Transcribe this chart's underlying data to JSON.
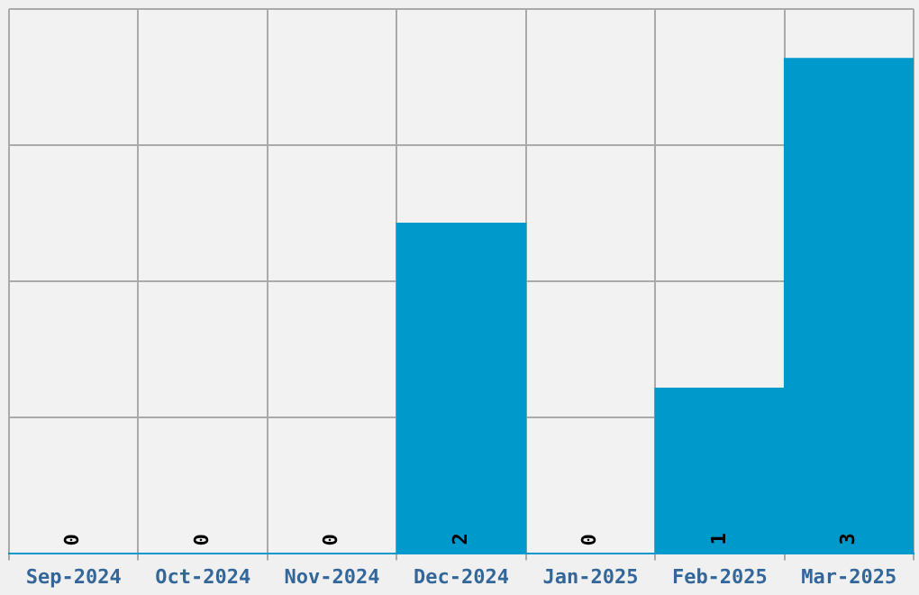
{
  "chart_data": {
    "type": "bar",
    "categories": [
      "Sep-2024",
      "Oct-2024",
      "Nov-2024",
      "Dec-2024",
      "Jan-2025",
      "Feb-2025",
      "Mar-2025"
    ],
    "values": [
      0,
      0,
      0,
      2,
      0,
      1,
      3
    ],
    "color": "#0099cc",
    "data_labels": true,
    "ylim": [
      0,
      3.3
    ],
    "yticks": [
      {
        "value": 0,
        "label": null
      },
      {
        "value": 0.825,
        "label": null
      },
      {
        "value": 1.65,
        "label": null
      },
      {
        "value": 2.475,
        "label": null
      },
      {
        "value": 3.3,
        "label": null
      }
    ],
    "grid": true,
    "tick_labels": "x"
  }
}
